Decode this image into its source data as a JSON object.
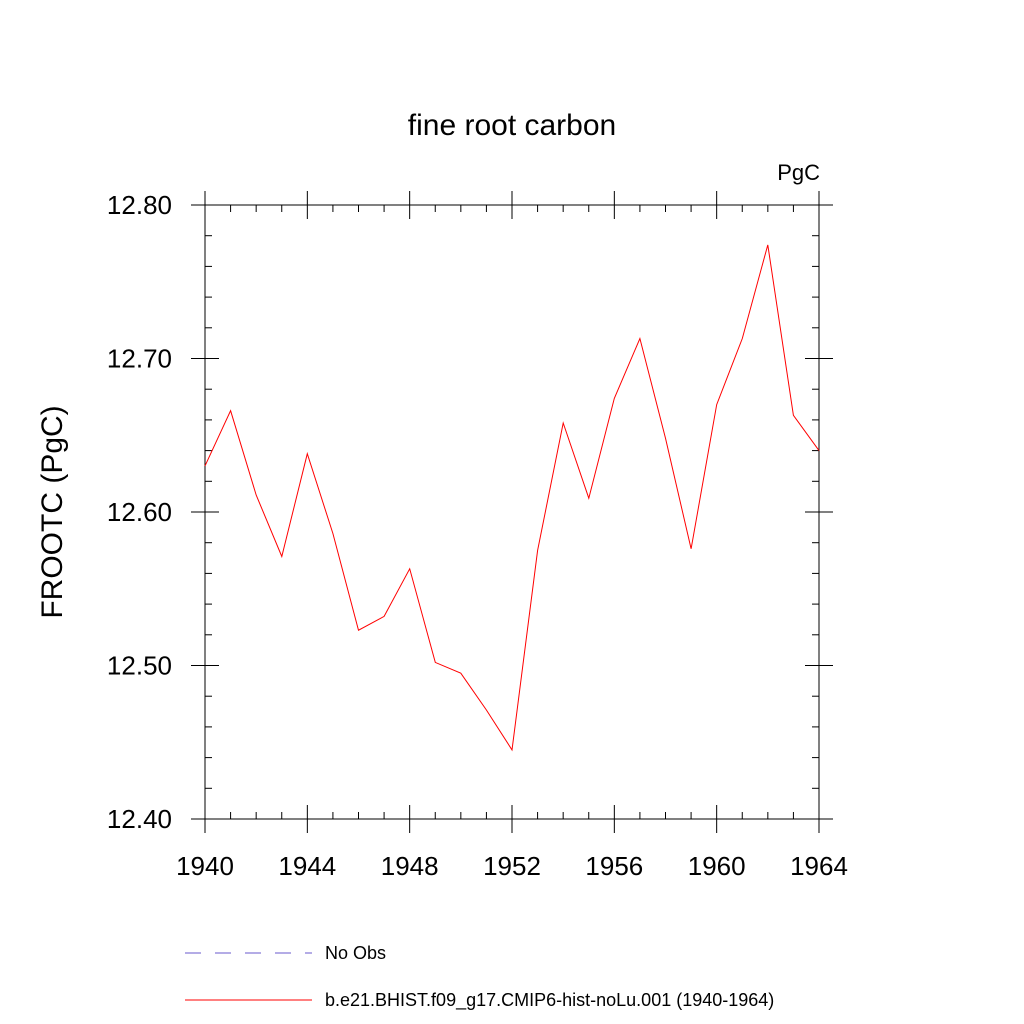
{
  "chart_data": {
    "type": "line",
    "title": "fine root carbon",
    "units_label": "PgC",
    "ylabel": "FROOTC  (PgC)",
    "xlabel": "",
    "xlim": [
      1940,
      1964
    ],
    "ylim": [
      12.4,
      12.8
    ],
    "x_ticks": [
      "1940",
      "1944",
      "1948",
      "1952",
      "1956",
      "1960",
      "1964"
    ],
    "y_ticks": [
      "12.40",
      "12.50",
      "12.60",
      "12.70",
      "12.80"
    ],
    "grid": false,
    "legend_position": "bottom",
    "series": [
      {
        "name": "b.e21.BHIST.f09_g17.CMIP6-hist-noLu.001 (1940-1964)",
        "color": "#ff0000",
        "style": "solid",
        "x": [
          1940,
          1941,
          1942,
          1943,
          1944,
          1945,
          1946,
          1947,
          1948,
          1949,
          1950,
          1951,
          1952,
          1953,
          1954,
          1955,
          1956,
          1957,
          1958,
          1959,
          1960,
          1961,
          1962,
          1963,
          1964
        ],
        "y": [
          12.63,
          12.666,
          12.611,
          12.571,
          12.638,
          12.586,
          12.523,
          12.532,
          12.563,
          12.502,
          12.495,
          12.471,
          12.445,
          12.575,
          12.658,
          12.609,
          12.674,
          12.713,
          12.648,
          12.576,
          12.67,
          12.713,
          12.774,
          12.663,
          12.64
        ]
      }
    ],
    "legend": [
      {
        "label": "No Obs",
        "color": "#6a5acd",
        "style": "dashed"
      },
      {
        "label": "b.e21.BHIST.f09_g17.CMIP6-hist-noLu.001 (1940-1964)",
        "color": "#ff0000",
        "style": "solid"
      }
    ]
  }
}
